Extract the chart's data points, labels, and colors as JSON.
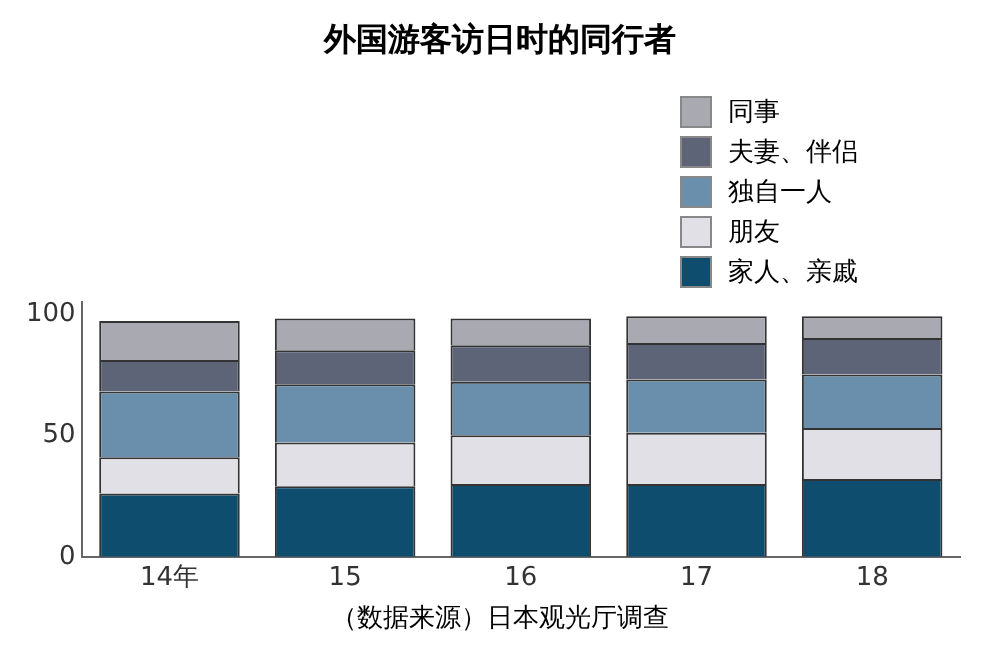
{
  "chart_data": {
    "type": "bar",
    "stacked": true,
    "title": "外国游客访日时的同行者",
    "categories": [
      "14年",
      "15",
      "16",
      "17",
      "18"
    ],
    "series": [
      {
        "name": "家人、亲戚",
        "color": "#0e4d6e",
        "values": [
          26,
          29,
          30,
          30,
          32
        ]
      },
      {
        "name": "朋友",
        "color": "#e0e0e6",
        "values": [
          15,
          18,
          20,
          21,
          21
        ]
      },
      {
        "name": "独自一人",
        "color": "#6a8fac",
        "values": [
          27,
          24,
          22,
          22,
          22
        ]
      },
      {
        "name": "夫妻、伴侣",
        "color": "#5d6478",
        "values": [
          13,
          14,
          15,
          15,
          15
        ]
      },
      {
        "name": "同事",
        "color": "#a9a9b2",
        "values": [
          16,
          13,
          11,
          11,
          9
        ]
      }
    ],
    "ylim": [
      0,
      105
    ],
    "yticks": [
      0,
      50,
      100
    ],
    "grid": false,
    "legend": "top right",
    "annotations": [
      "（数据来源）日本观光厅调查"
    ]
  }
}
